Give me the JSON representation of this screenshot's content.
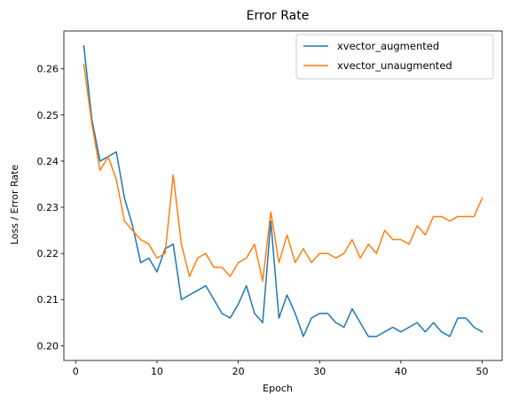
{
  "chart_data": {
    "type": "line",
    "title": "Error Rate",
    "xlabel": "Epoch",
    "ylabel": "Loss / Error Rate",
    "xlim": [
      -1.45,
      52.45
    ],
    "ylim": [
      0.1968,
      0.2682
    ],
    "xticks": [
      0,
      10,
      20,
      30,
      40,
      50
    ],
    "yticks": [
      0.2,
      0.21,
      0.22,
      0.23,
      0.24,
      0.25,
      0.26
    ],
    "grid": false,
    "legend_position": "top-right",
    "x": [
      1,
      2,
      3,
      4,
      5,
      6,
      7,
      8,
      9,
      10,
      11,
      12,
      13,
      14,
      15,
      16,
      17,
      18,
      19,
      20,
      21,
      22,
      23,
      24,
      25,
      26,
      27,
      28,
      29,
      30,
      31,
      32,
      33,
      34,
      35,
      36,
      37,
      38,
      39,
      40,
      41,
      42,
      43,
      44,
      45,
      46,
      47,
      48,
      49,
      50
    ],
    "series": [
      {
        "name": "xvector_augmented",
        "color": "#1f77b4",
        "values": [
          0.265,
          0.249,
          0.24,
          0.241,
          0.242,
          0.232,
          0.226,
          0.218,
          0.219,
          0.216,
          0.221,
          0.222,
          0.21,
          0.211,
          0.212,
          0.213,
          0.21,
          0.207,
          0.206,
          0.209,
          0.213,
          0.207,
          0.205,
          0.227,
          0.206,
          0.211,
          0.207,
          0.202,
          0.206,
          0.207,
          0.207,
          0.205,
          0.204,
          0.208,
          0.205,
          0.202,
          0.202,
          0.203,
          0.204,
          0.203,
          0.204,
          0.205,
          0.203,
          0.205,
          0.203,
          0.202,
          0.206,
          0.206,
          0.204,
          0.203
        ]
      },
      {
        "name": "xvector_unaugmented",
        "color": "#ff7f0e",
        "values": [
          0.261,
          0.248,
          0.238,
          0.241,
          0.236,
          0.227,
          0.225,
          0.223,
          0.222,
          0.219,
          0.22,
          0.237,
          0.222,
          0.215,
          0.219,
          0.22,
          0.217,
          0.217,
          0.215,
          0.218,
          0.219,
          0.222,
          0.214,
          0.229,
          0.218,
          0.224,
          0.218,
          0.221,
          0.218,
          0.22,
          0.22,
          0.219,
          0.22,
          0.223,
          0.219,
          0.222,
          0.22,
          0.225,
          0.223,
          0.223,
          0.222,
          0.226,
          0.224,
          0.228,
          0.228,
          0.227,
          0.228,
          0.228,
          0.228,
          0.232
        ]
      }
    ]
  }
}
